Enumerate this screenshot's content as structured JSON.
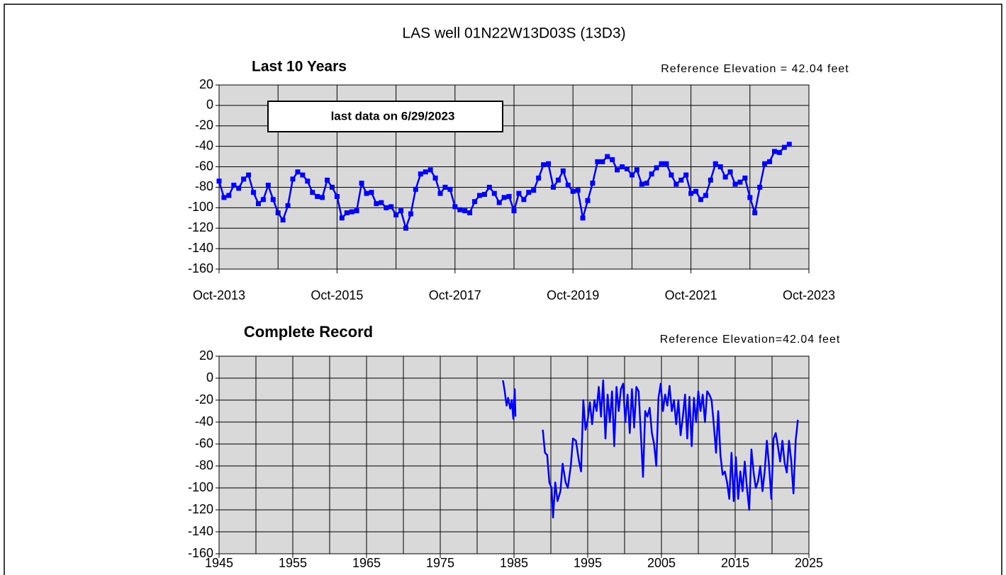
{
  "title": "LAS well 01N22W13D03S (13D3)",
  "chart_data": [
    {
      "type": "line",
      "title": "Last 10 Years",
      "subtitle": "Reference Elevation = 42.04 feet",
      "annotation": "last data on 6/29/2023",
      "x": [
        "2013-10",
        "2013-11",
        "2013-12",
        "2014-01",
        "2014-02",
        "2014-03",
        "2014-04",
        "2014-05",
        "2014-06",
        "2014-07",
        "2014-08",
        "2014-09",
        "2014-10",
        "2014-11",
        "2014-12",
        "2015-01",
        "2015-02",
        "2015-03",
        "2015-04",
        "2015-05",
        "2015-06",
        "2015-07",
        "2015-08",
        "2015-09",
        "2015-10",
        "2015-11",
        "2015-12",
        "2016-01",
        "2016-02",
        "2016-03",
        "2016-04",
        "2016-05",
        "2016-06",
        "2016-07",
        "2016-08",
        "2016-09",
        "2016-10",
        "2016-11",
        "2016-12",
        "2017-01",
        "2017-02",
        "2017-03",
        "2017-04",
        "2017-05",
        "2017-06",
        "2017-07",
        "2017-08",
        "2017-09",
        "2017-10",
        "2017-11",
        "2017-12",
        "2018-01",
        "2018-02",
        "2018-03",
        "2018-04",
        "2018-05",
        "2018-06",
        "2018-07",
        "2018-08",
        "2018-09",
        "2018-10",
        "2018-11",
        "2018-12",
        "2019-01",
        "2019-02",
        "2019-03",
        "2019-04",
        "2019-05",
        "2019-06",
        "2019-07",
        "2019-08",
        "2019-09",
        "2019-10",
        "2019-11",
        "2019-12",
        "2020-01",
        "2020-02",
        "2020-03",
        "2020-04",
        "2020-05",
        "2020-06",
        "2020-07",
        "2020-08",
        "2020-09",
        "2020-10",
        "2020-11",
        "2020-12",
        "2021-01",
        "2021-02",
        "2021-03",
        "2021-04",
        "2021-05",
        "2021-06",
        "2021-07",
        "2021-08",
        "2021-09",
        "2021-10",
        "2021-11",
        "2021-12",
        "2022-01",
        "2022-02",
        "2022-03",
        "2022-04",
        "2022-05",
        "2022-06",
        "2022-07",
        "2022-08",
        "2022-09",
        "2022-10",
        "2022-11",
        "2022-12",
        "2023-01",
        "2023-02",
        "2023-03",
        "2023-04",
        "2023-05",
        "2023-06"
      ],
      "series": [
        {
          "color": "#0000ff",
          "marker": "square",
          "values": [
            -74,
            -90,
            -88,
            -78,
            -81,
            -72,
            -68,
            -85,
            -96,
            -92,
            -78,
            -92,
            -105,
            -112,
            -98,
            -72,
            -65,
            -68,
            -74,
            -85,
            -89,
            -90,
            -73,
            -80,
            -89,
            -110,
            -105,
            -104,
            -103,
            -76,
            -86,
            -85,
            -96,
            -95,
            -100,
            -99,
            -107,
            -103,
            -120,
            -106,
            -82,
            -67,
            -65,
            -63,
            -71,
            -86,
            -80,
            -82,
            -99,
            -102,
            -103,
            -105,
            -94,
            -88,
            -87,
            -80,
            -86,
            -95,
            -90,
            -89,
            -103,
            -86,
            -92,
            -85,
            -83,
            -71,
            -58,
            -57,
            -80,
            -73,
            -64,
            -78,
            -84,
            -83,
            -110,
            -93,
            -76,
            -55,
            -55,
            -50,
            -53,
            -63,
            -60,
            -62,
            -68,
            -63,
            -77,
            -76,
            -67,
            -61,
            -57,
            -57,
            -68,
            -77,
            -73,
            -68,
            -86,
            -84,
            -92,
            -88,
            -73,
            -57,
            -60,
            -70,
            -65,
            -77,
            -75,
            -71,
            -90,
            -105,
            -80,
            -57,
            -55,
            -45,
            -46,
            -41,
            -38
          ]
        }
      ],
      "xlim": [
        "2013-10",
        "2023-10"
      ],
      "xticks": [
        {
          "value": "2013-10",
          "label": "Oct-2013"
        },
        {
          "value": "2015-10",
          "label": "Oct-2015"
        },
        {
          "value": "2017-10",
          "label": "Oct-2017"
        },
        {
          "value": "2019-10",
          "label": "Oct-2019"
        },
        {
          "value": "2021-10",
          "label": "Oct-2021"
        },
        {
          "value": "2023-10",
          "label": "Oct-2023"
        }
      ],
      "xgrid": [
        "2014-10",
        "2015-10",
        "2016-10",
        "2017-10",
        "2018-10",
        "2019-10",
        "2020-10",
        "2021-10",
        "2022-10"
      ],
      "ylim": [
        -160,
        20
      ],
      "yticks": [
        20,
        0,
        -20,
        -40,
        -60,
        -80,
        -100,
        -120,
        -140,
        -160
      ],
      "grid": true,
      "background": "#d9d9d9"
    },
    {
      "type": "line",
      "title": "Complete Record",
      "subtitle": "Reference Elevation=42.04 feet",
      "x": [
        1983.5,
        1983.7,
        1984,
        1984.2,
        1984.5,
        1984.7,
        1984.9,
        1985.1,
        1985.2,
        1987,
        1988.9,
        1989.2,
        1989.5,
        1989.8,
        1990.1,
        1990.3,
        1990.6,
        1990.9,
        1991.3,
        1991.6,
        1992,
        1992.3,
        1992.7,
        1993,
        1993.4,
        1993.8,
        1994.1,
        1994.4,
        1994.7,
        1995,
        1995.3,
        1995.6,
        1995.9,
        1996.2,
        1996.5,
        1996.8,
        1997.1,
        1997.4,
        1997.7,
        1998,
        1998.3,
        1998.6,
        1998.9,
        1999.2,
        1999.5,
        1999.8,
        2000.1,
        2000.4,
        2000.7,
        2001,
        2001.3,
        2001.6,
        2001.9,
        2002.2,
        2002.5,
        2002.8,
        2003.1,
        2003.4,
        2003.7,
        2004,
        2004.3,
        2004.6,
        2004.9,
        2005.2,
        2005.5,
        2005.8,
        2006.1,
        2006.4,
        2006.7,
        2007,
        2007.3,
        2007.6,
        2007.9,
        2008.2,
        2008.5,
        2008.8,
        2009.1,
        2009.4,
        2009.7,
        2010,
        2010.3,
        2010.6,
        2010.9,
        2011.2,
        2011.5,
        2011.8,
        2012.1,
        2012.4,
        2012.7,
        2013,
        2013.3,
        2013.6,
        2013.9,
        2014.2,
        2014.5,
        2014.8,
        2015.1,
        2015.4,
        2015.7,
        2016,
        2016.3,
        2016.6,
        2016.9,
        2017.2,
        2017.5,
        2017.8,
        2018.1,
        2018.4,
        2018.7,
        2019,
        2019.3,
        2019.6,
        2019.9,
        2020.2,
        2020.5,
        2020.8,
        2021.1,
        2021.4,
        2021.7,
        2022,
        2022.3,
        2022.6,
        2022.9,
        2023.2,
        2023.5
      ],
      "series": [
        {
          "color": "#0000ff",
          "values": [
            -2,
            -10,
            -25,
            -18,
            -28,
            -20,
            -37,
            -10,
            -35,
            null,
            -47,
            -68,
            -70,
            -95,
            -100,
            -127,
            -95,
            -112,
            -103,
            -78,
            -95,
            -100,
            -80,
            -55,
            -57,
            -75,
            -85,
            -20,
            -47,
            -38,
            -22,
            -42,
            -20,
            -30,
            -8,
            -35,
            -2,
            -55,
            -15,
            -40,
            -12,
            -62,
            -8,
            -30,
            -10,
            -5,
            -40,
            -15,
            -50,
            -10,
            -45,
            -8,
            -12,
            -50,
            -90,
            -30,
            -35,
            -27,
            -50,
            -60,
            -80,
            -18,
            -5,
            -30,
            -15,
            -25,
            -7,
            -30,
            -20,
            -42,
            -20,
            -52,
            -35,
            -15,
            -55,
            -17,
            -62,
            -18,
            -40,
            -12,
            -30,
            -15,
            -40,
            -12,
            -15,
            -20,
            -42,
            -68,
            -30,
            -70,
            -88,
            -85,
            -95,
            -110,
            -68,
            -112,
            -72,
            -110,
            -85,
            -103,
            -76,
            -100,
            -120,
            -65,
            -86,
            -100,
            -94,
            -80,
            -103,
            -85,
            -57,
            -80,
            -110,
            -55,
            -50,
            -62,
            -76,
            -57,
            -77,
            -86,
            -57,
            -75,
            -105,
            -57,
            -38
          ]
        }
      ],
      "xlim": [
        1945,
        2025
      ],
      "xticks": [
        1945,
        1955,
        1965,
        1975,
        1985,
        1995,
        2005,
        2015,
        2025
      ],
      "xgrid": [
        1950,
        1955,
        1960,
        1965,
        1970,
        1975,
        1980,
        1985,
        1990,
        1995,
        2000,
        2005,
        2010,
        2015,
        2020
      ],
      "ylim": [
        -160,
        20
      ],
      "yticks": [
        20,
        0,
        -20,
        -40,
        -60,
        -80,
        -100,
        -120,
        -140,
        -160
      ],
      "grid": true,
      "background": "#d9d9d9"
    }
  ]
}
